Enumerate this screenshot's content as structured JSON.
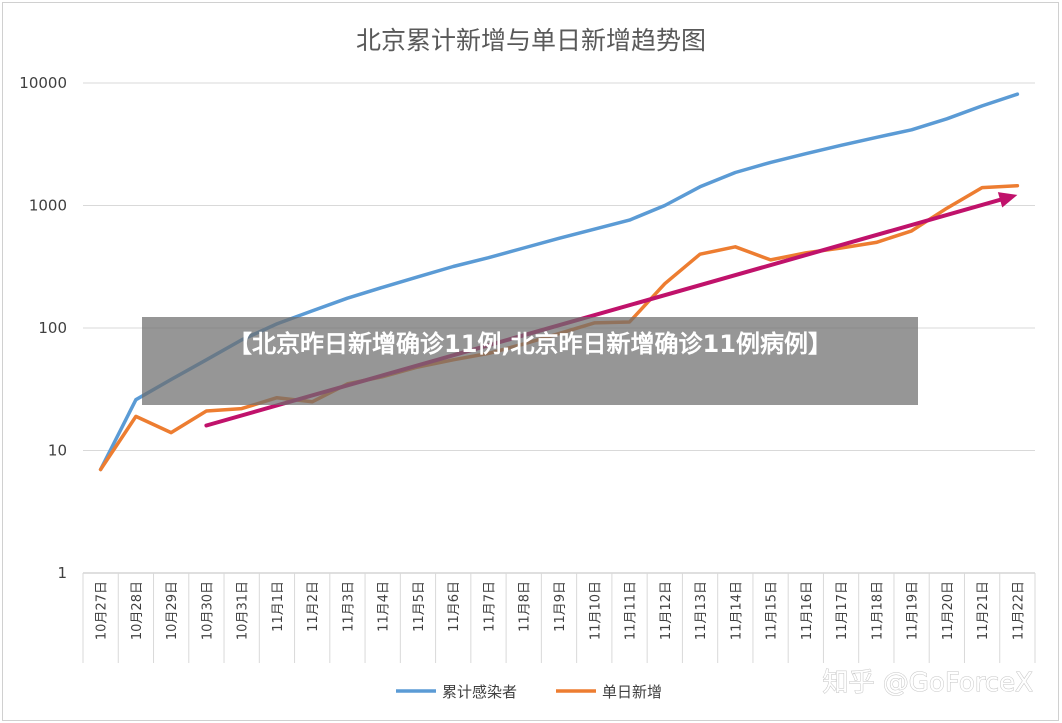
{
  "chart_data": {
    "type": "line",
    "title": "北京累计新增与单日新增趋势图",
    "y_scale": "log",
    "ylim": [
      1,
      10000
    ],
    "y_ticks": [
      "1",
      "10",
      "100",
      "1000",
      "10000"
    ],
    "grid": "horizontal",
    "legend_position": "bottom",
    "categories": [
      "10月27日",
      "10月28日",
      "10月29日",
      "10月30日",
      "10月31日",
      "11月1日",
      "11月2日",
      "11月3日",
      "11月4日",
      "11月5日",
      "11月6日",
      "11月7日",
      "11月8日",
      "11月9日",
      "11月10日",
      "11月11日",
      "11月12日",
      "11月13日",
      "11月14日",
      "11月15日",
      "11月16日",
      "11月17日",
      "11月18日",
      "11月19日",
      "11月20日",
      "11月21日",
      "11月22日"
    ],
    "series": [
      {
        "name": "累计感染者",
        "color": "#5b9bd5",
        "values": [
          7,
          26,
          38,
          55,
          80,
          108,
          138,
          175,
          215,
          262,
          318,
          375,
          450,
          540,
          640,
          760,
          1000,
          1420,
          1860,
          2250,
          2650,
          3100,
          3600,
          4150,
          5100,
          6500,
          8100
        ]
      },
      {
        "name": "单日新增",
        "color": "#ed7d31",
        "values": [
          7,
          19,
          14,
          21,
          22,
          27,
          25,
          35,
          40,
          48,
          55,
          62,
          74,
          90,
          110,
          112,
          230,
          400,
          460,
          360,
          410,
          450,
          500,
          620,
          950,
          1400,
          1450
        ]
      }
    ],
    "trend_arrow": {
      "color": "#c0126b",
      "from": {
        "x": "10月30日",
        "y": 16
      },
      "to": {
        "x": "11月22日",
        "y": 1220
      }
    }
  },
  "banner": {
    "text": "【北京昨日新增确诊11例,北京昨日新增确诊11例病例】"
  },
  "watermark": "知乎 @GoForceX"
}
